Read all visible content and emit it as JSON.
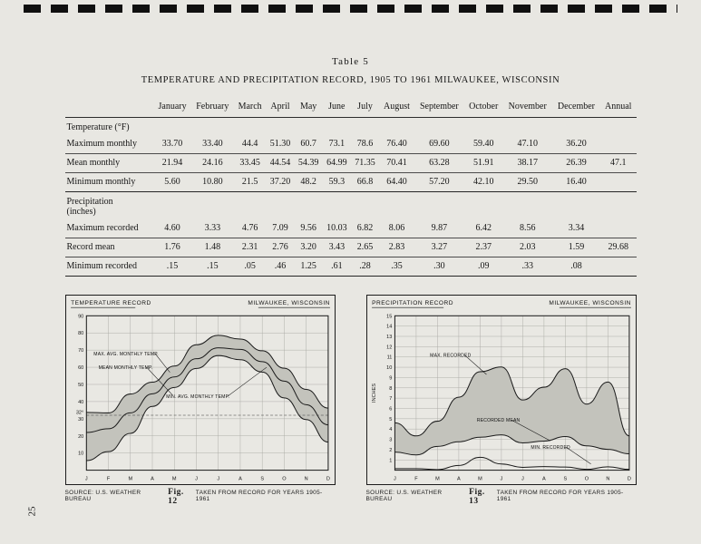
{
  "page": {
    "number": "25"
  },
  "table": {
    "caption": "Table 5",
    "title": "TEMPERATURE AND PRECIPITATION RECORD, 1905 TO 1961 MILWAUKEE, WISCONSIN",
    "columns": [
      "January",
      "February",
      "March",
      "April",
      "May",
      "June",
      "July",
      "August",
      "September",
      "October",
      "November",
      "December",
      "Annual"
    ],
    "sections": [
      {
        "label": "Temperature (°F)",
        "rows": [
          {
            "label": "Maximum monthly",
            "values": [
              "33.70",
              "33.40",
              "44.4",
              "51.30",
              "60.7",
              "73.1",
              "78.6",
              "76.40",
              "69.60",
              "59.40",
              "47.10",
              "36.20",
              ""
            ]
          },
          {
            "label": "Mean monthly",
            "values": [
              "21.94",
              "24.16",
              "33.45",
              "44.54",
              "54.39",
              "64.99",
              "71.35",
              "70.41",
              "63.28",
              "51.91",
              "38.17",
              "26.39",
              "47.1"
            ]
          },
          {
            "label": "Minimum monthly",
            "values": [
              "5.60",
              "10.80",
              "21.5",
              "37.20",
              "48.2",
              "59.3",
              "66.8",
              "64.40",
              "57.20",
              "42.10",
              "29.50",
              "16.40",
              ""
            ]
          }
        ]
      },
      {
        "label": "Precipitation\n(inches)",
        "rows": [
          {
            "label": "Maximum recorded",
            "values": [
              "4.60",
              "3.33",
              "4.76",
              "7.09",
              "9.56",
              "10.03",
              "6.82",
              "8.06",
              "9.87",
              "6.42",
              "8.56",
              "3.34",
              ""
            ]
          },
          {
            "label": "Record mean",
            "values": [
              "1.76",
              "1.48",
              "2.31",
              "2.76",
              "3.20",
              "3.43",
              "2.65",
              "2.83",
              "3.27",
              "2.37",
              "2.03",
              "1.59",
              "29.68"
            ]
          },
          {
            "label": "Minimum recorded",
            "values": [
              ".15",
              ".15",
              ".05",
              ".46",
              "1.25",
              ".61",
              ".28",
              ".35",
              ".30",
              ".09",
              ".33",
              ".08",
              ""
            ]
          }
        ]
      }
    ]
  },
  "chart_data": [
    {
      "type": "area",
      "title": "TEMPERATURE RECORD",
      "subtitle": "MILWAUKEE, WISCONSIN",
      "x_labels": [
        "J",
        "F",
        "M",
        "A",
        "M",
        "J",
        "J",
        "A",
        "S",
        "O",
        "N",
        "D"
      ],
      "ylim": [
        0,
        90
      ],
      "yticks": [
        10,
        20,
        30,
        40,
        50,
        60,
        70,
        80,
        90
      ],
      "reference_line": {
        "value": 32,
        "label": "32°"
      },
      "fill_between": [
        0,
        2
      ],
      "series": [
        {
          "name": "MAX. AVG. MONTHLY TEMP.",
          "values": [
            33.7,
            33.4,
            44.4,
            51.3,
            60.7,
            73.1,
            78.6,
            76.4,
            69.6,
            59.4,
            47.1,
            36.2
          ]
        },
        {
          "name": "MEAN MONTHLY TEMP.",
          "values": [
            21.94,
            24.16,
            33.45,
            44.54,
            54.39,
            64.99,
            71.35,
            70.41,
            63.28,
            51.91,
            38.17,
            26.39
          ]
        },
        {
          "name": "MIN. AVG. MONTHLY TEMP.",
          "values": [
            5.6,
            10.8,
            21.5,
            37.2,
            48.2,
            59.3,
            66.8,
            64.4,
            57.2,
            42.1,
            29.5,
            16.4
          ]
        }
      ],
      "source": "SOURCE: U.S. WEATHER BUREAU",
      "fig_label": "Fig. 12",
      "note": "TAKEN FROM RECORD FOR YEARS 1905-1961"
    },
    {
      "type": "area",
      "title": "PRECIPITATION RECORD",
      "subtitle": "MILWAUKEE, WISCONSIN",
      "ylabel": "INCHES",
      "x_labels": [
        "J",
        "F",
        "M",
        "A",
        "M",
        "J",
        "J",
        "A",
        "S",
        "O",
        "N",
        "D"
      ],
      "ylim": [
        0,
        15
      ],
      "yticks": [
        1,
        2,
        3,
        4,
        5,
        6,
        7,
        8,
        9,
        10,
        11,
        12,
        13,
        14,
        15
      ],
      "fill_between": [
        0,
        1
      ],
      "series": [
        {
          "name": "MAX. RECORDED",
          "values": [
            4.6,
            3.33,
            4.76,
            7.09,
            9.56,
            10.03,
            6.82,
            8.06,
            9.87,
            6.42,
            8.56,
            3.34
          ]
        },
        {
          "name": "RECORDED MEAN",
          "values": [
            1.76,
            1.48,
            2.31,
            2.76,
            3.2,
            3.43,
            2.65,
            2.83,
            3.27,
            2.37,
            2.03,
            1.59
          ]
        },
        {
          "name": "MIN. RECORDED",
          "values": [
            0.15,
            0.15,
            0.05,
            0.46,
            1.25,
            0.61,
            0.28,
            0.35,
            0.3,
            0.09,
            0.33,
            0.08
          ]
        }
      ],
      "source": "SOURCE: U.S. WEATHER BUREAU",
      "fig_label": "Fig. 13",
      "note": "TAKEN FROM RECORD FOR YEARS 1905-1961"
    }
  ]
}
